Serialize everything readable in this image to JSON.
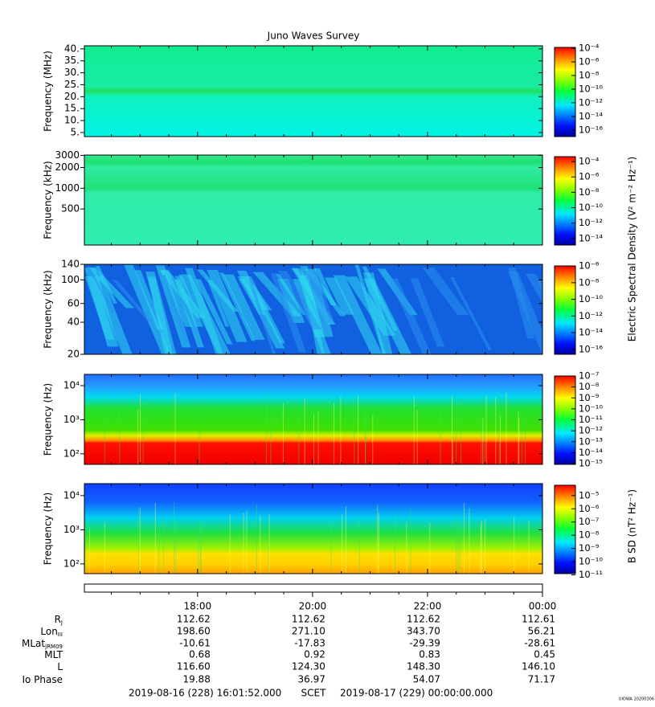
{
  "title": "Juno Waves Survey",
  "chart_data": [
    {
      "type": "spectrogram",
      "ylabel": "Frequency (MHz)",
      "yscale": "linear",
      "ylim": [
        3.3,
        41.3
      ],
      "yticks": [
        {
          "value": 5,
          "label": "5."
        },
        {
          "value": 10,
          "label": "10."
        },
        {
          "value": 15,
          "label": "15."
        },
        {
          "value": 20,
          "label": "20."
        },
        {
          "value": 25,
          "label": "25."
        },
        {
          "value": 30,
          "label": "30."
        },
        {
          "value": 35,
          "label": "35."
        },
        {
          "value": 40,
          "label": "40."
        }
      ],
      "zscale": "log",
      "zlim": [
        1.1e-17,
        0.00023
      ],
      "zticks": [
        {
          "value": 0.0001,
          "label": "10⁻⁴"
        },
        {
          "value": 1e-06,
          "label": "10⁻⁶"
        },
        {
          "value": 1e-08,
          "label": "10⁻⁸"
        },
        {
          "value": 1e-10,
          "label": "10⁻¹⁰"
        },
        {
          "value": 1e-12,
          "label": "10⁻¹²"
        },
        {
          "value": 1e-14,
          "label": "10⁻¹⁴"
        },
        {
          "value": 1e-16,
          "label": "10⁻¹⁶"
        }
      ]
    },
    {
      "type": "spectrogram",
      "ylabel": "Frequency (kHz)",
      "yscale": "log",
      "ylim": [
        150,
        3030
      ],
      "yticks": [
        500,
        1000,
        2000,
        3000
      ],
      "zscale": "log",
      "zlim": [
        1.4e-15,
        0.0007
      ],
      "zticks": [
        {
          "value": 0.0001,
          "label": "10⁻⁴"
        },
        {
          "value": 1e-06,
          "label": "10⁻⁶"
        },
        {
          "value": 1e-08,
          "label": "10⁻⁸"
        },
        {
          "value": 1e-10,
          "label": "10⁻¹⁰"
        },
        {
          "value": 1e-12,
          "label": "10⁻¹²"
        },
        {
          "value": 1e-14,
          "label": "10⁻¹⁴"
        }
      ]
    },
    {
      "type": "spectrogram",
      "ylabel": "Frequency (kHz)",
      "yscale": "log",
      "ylim": [
        20,
        140
      ],
      "yticks": [
        20,
        40,
        60,
        100,
        140
      ],
      "zscale": "log",
      "zlim": [
        2.5e-17,
        1.6e-06
      ],
      "zticks": [
        {
          "value": 1e-06,
          "label": "10⁻⁶"
        },
        {
          "value": 1e-08,
          "label": "10⁻⁸"
        },
        {
          "value": 1e-10,
          "label": "10⁻¹⁰"
        },
        {
          "value": 1e-12,
          "label": "10⁻¹²"
        },
        {
          "value": 1e-14,
          "label": "10⁻¹⁴"
        },
        {
          "value": 1e-16,
          "label": "10⁻¹⁶"
        }
      ]
    },
    {
      "type": "spectrogram",
      "ylabel": "Frequency (Hz)",
      "yscale": "log",
      "ylim": [
        49,
        21400
      ],
      "yticks": [
        {
          "value": 100,
          "label": "10²"
        },
        {
          "value": 1000,
          "label": "10³"
        },
        {
          "value": 10000,
          "label": "10⁴"
        }
      ],
      "zscale": "log",
      "zlim": [
        8.5e-16,
        1.4e-07
      ],
      "zticks": [
        {
          "value": 1e-07,
          "label": "10⁻⁷"
        },
        {
          "value": 1e-08,
          "label": "10⁻⁸"
        },
        {
          "value": 1e-09,
          "label": "10⁻⁹"
        },
        {
          "value": 1e-10,
          "label": "10⁻¹⁰"
        },
        {
          "value": 1e-11,
          "label": "10⁻¹¹"
        },
        {
          "value": 1e-12,
          "label": "10⁻¹²"
        },
        {
          "value": 1e-13,
          "label": "10⁻¹³"
        },
        {
          "value": 1e-14,
          "label": "10⁻¹⁴"
        },
        {
          "value": 1e-15,
          "label": "10⁻¹⁵"
        }
      ]
    },
    {
      "type": "spectrogram",
      "ylabel": "Frequency (Hz)",
      "yscale": "log",
      "ylim": [
        52,
        22400
      ],
      "yticks": [
        {
          "value": 100,
          "label": "10²"
        },
        {
          "value": 1000,
          "label": "10³"
        },
        {
          "value": 10000,
          "label": "10⁴"
        }
      ],
      "zscale": "log",
      "zlim": [
        1.25e-11,
        7.9e-05
      ],
      "zticks": [
        {
          "value": 1e-05,
          "label": "10⁻⁵"
        },
        {
          "value": 1e-06,
          "label": "10⁻⁶"
        },
        {
          "value": 1e-07,
          "label": "10⁻⁷"
        },
        {
          "value": 1e-08,
          "label": "10⁻⁸"
        },
        {
          "value": 1e-09,
          "label": "10⁻⁹"
        },
        {
          "value": 1e-10,
          "label": "10⁻¹⁰"
        },
        {
          "value": 1e-11,
          "label": "10⁻¹¹"
        }
      ]
    }
  ],
  "colorbar_labels": [
    "Electric Spectral Density (V² m⁻² Hz⁻¹)",
    "B SD (nT² Hz⁻¹)"
  ],
  "time_axis": {
    "xlim": [
      16.0311,
      24
    ],
    "xticks": [
      {
        "value": 18,
        "label": "18:00"
      },
      {
        "value": 20,
        "label": "20:00"
      },
      {
        "value": 22,
        "label": "22:00"
      },
      {
        "value": 24,
        "label": "00:00"
      }
    ]
  },
  "ephemeris": {
    "rows": [
      {
        "label": "R",
        "sub": "J",
        "values": [
          "112.62",
          "112.62",
          "112.62",
          "112.61"
        ]
      },
      {
        "label": "Lon",
        "sub": "III",
        "values": [
          "198.60",
          "271.10",
          "343.70",
          "56.21"
        ]
      },
      {
        "label": "MLat",
        "sub": "JRM09",
        "values": [
          "-10.61",
          "-17.83",
          "-29.39",
          "-28.61"
        ]
      },
      {
        "label": "MLT",
        "values": [
          "0.68",
          "0.92",
          "0.83",
          "0.45"
        ]
      },
      {
        "label": "L",
        "values": [
          "116.60",
          "124.30",
          "148.30",
          "146.10"
        ]
      },
      {
        "label": "Io Phase",
        "values": [
          "19.88",
          "36.97",
          "54.07",
          "71.17"
        ]
      }
    ]
  },
  "time_range": {
    "start": "2019-08-16 (228) 16:01:52.000",
    "label": "SCET",
    "end": "2019-08-17 (229) 00:00:00.000"
  },
  "footer": "UIOWA 20200306"
}
